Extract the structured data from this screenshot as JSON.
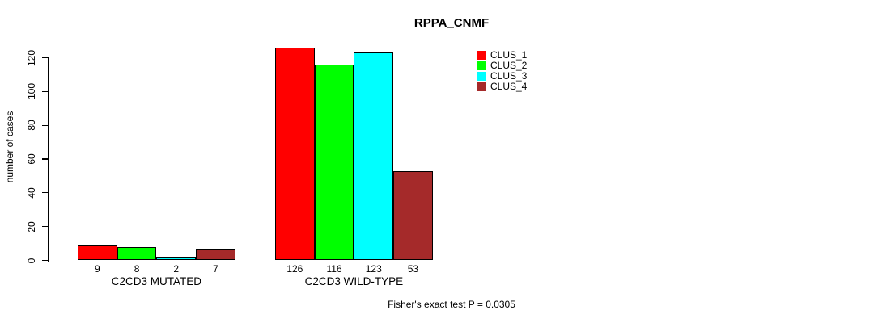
{
  "chart_data": {
    "type": "bar",
    "title": "RPPA_CNMF",
    "ylabel": "number of cases",
    "xlabel": "",
    "categories": [
      "C2CD3 MUTATED",
      "C2CD3 WILD-TYPE"
    ],
    "series": [
      {
        "name": "CLUS_1",
        "color": "#FF0000",
        "values": [
          9,
          126
        ]
      },
      {
        "name": "CLUS_2",
        "color": "#00FF00",
        "values": [
          8,
          116
        ]
      },
      {
        "name": "CLUS_3",
        "color": "#00FFFF",
        "values": [
          2,
          123
        ]
      },
      {
        "name": "CLUS_4",
        "color": "#A52A2A",
        "values": [
          7,
          53
        ]
      }
    ],
    "yticks": [
      0,
      20,
      40,
      60,
      80,
      100,
      120
    ],
    "ylim": [
      0,
      126
    ],
    "grid": false,
    "value_labels_shown": true,
    "legend": {
      "position": "top-right",
      "entries": [
        "CLUS_1",
        "CLUS_2",
        "CLUS_3",
        "CLUS_4"
      ]
    },
    "annotation": "Fisher's exact test P = 0.0305"
  },
  "colors": {
    "background": "#FFFFFF",
    "axis": "#000000",
    "text": "#000000",
    "bar_border": "#000000"
  }
}
